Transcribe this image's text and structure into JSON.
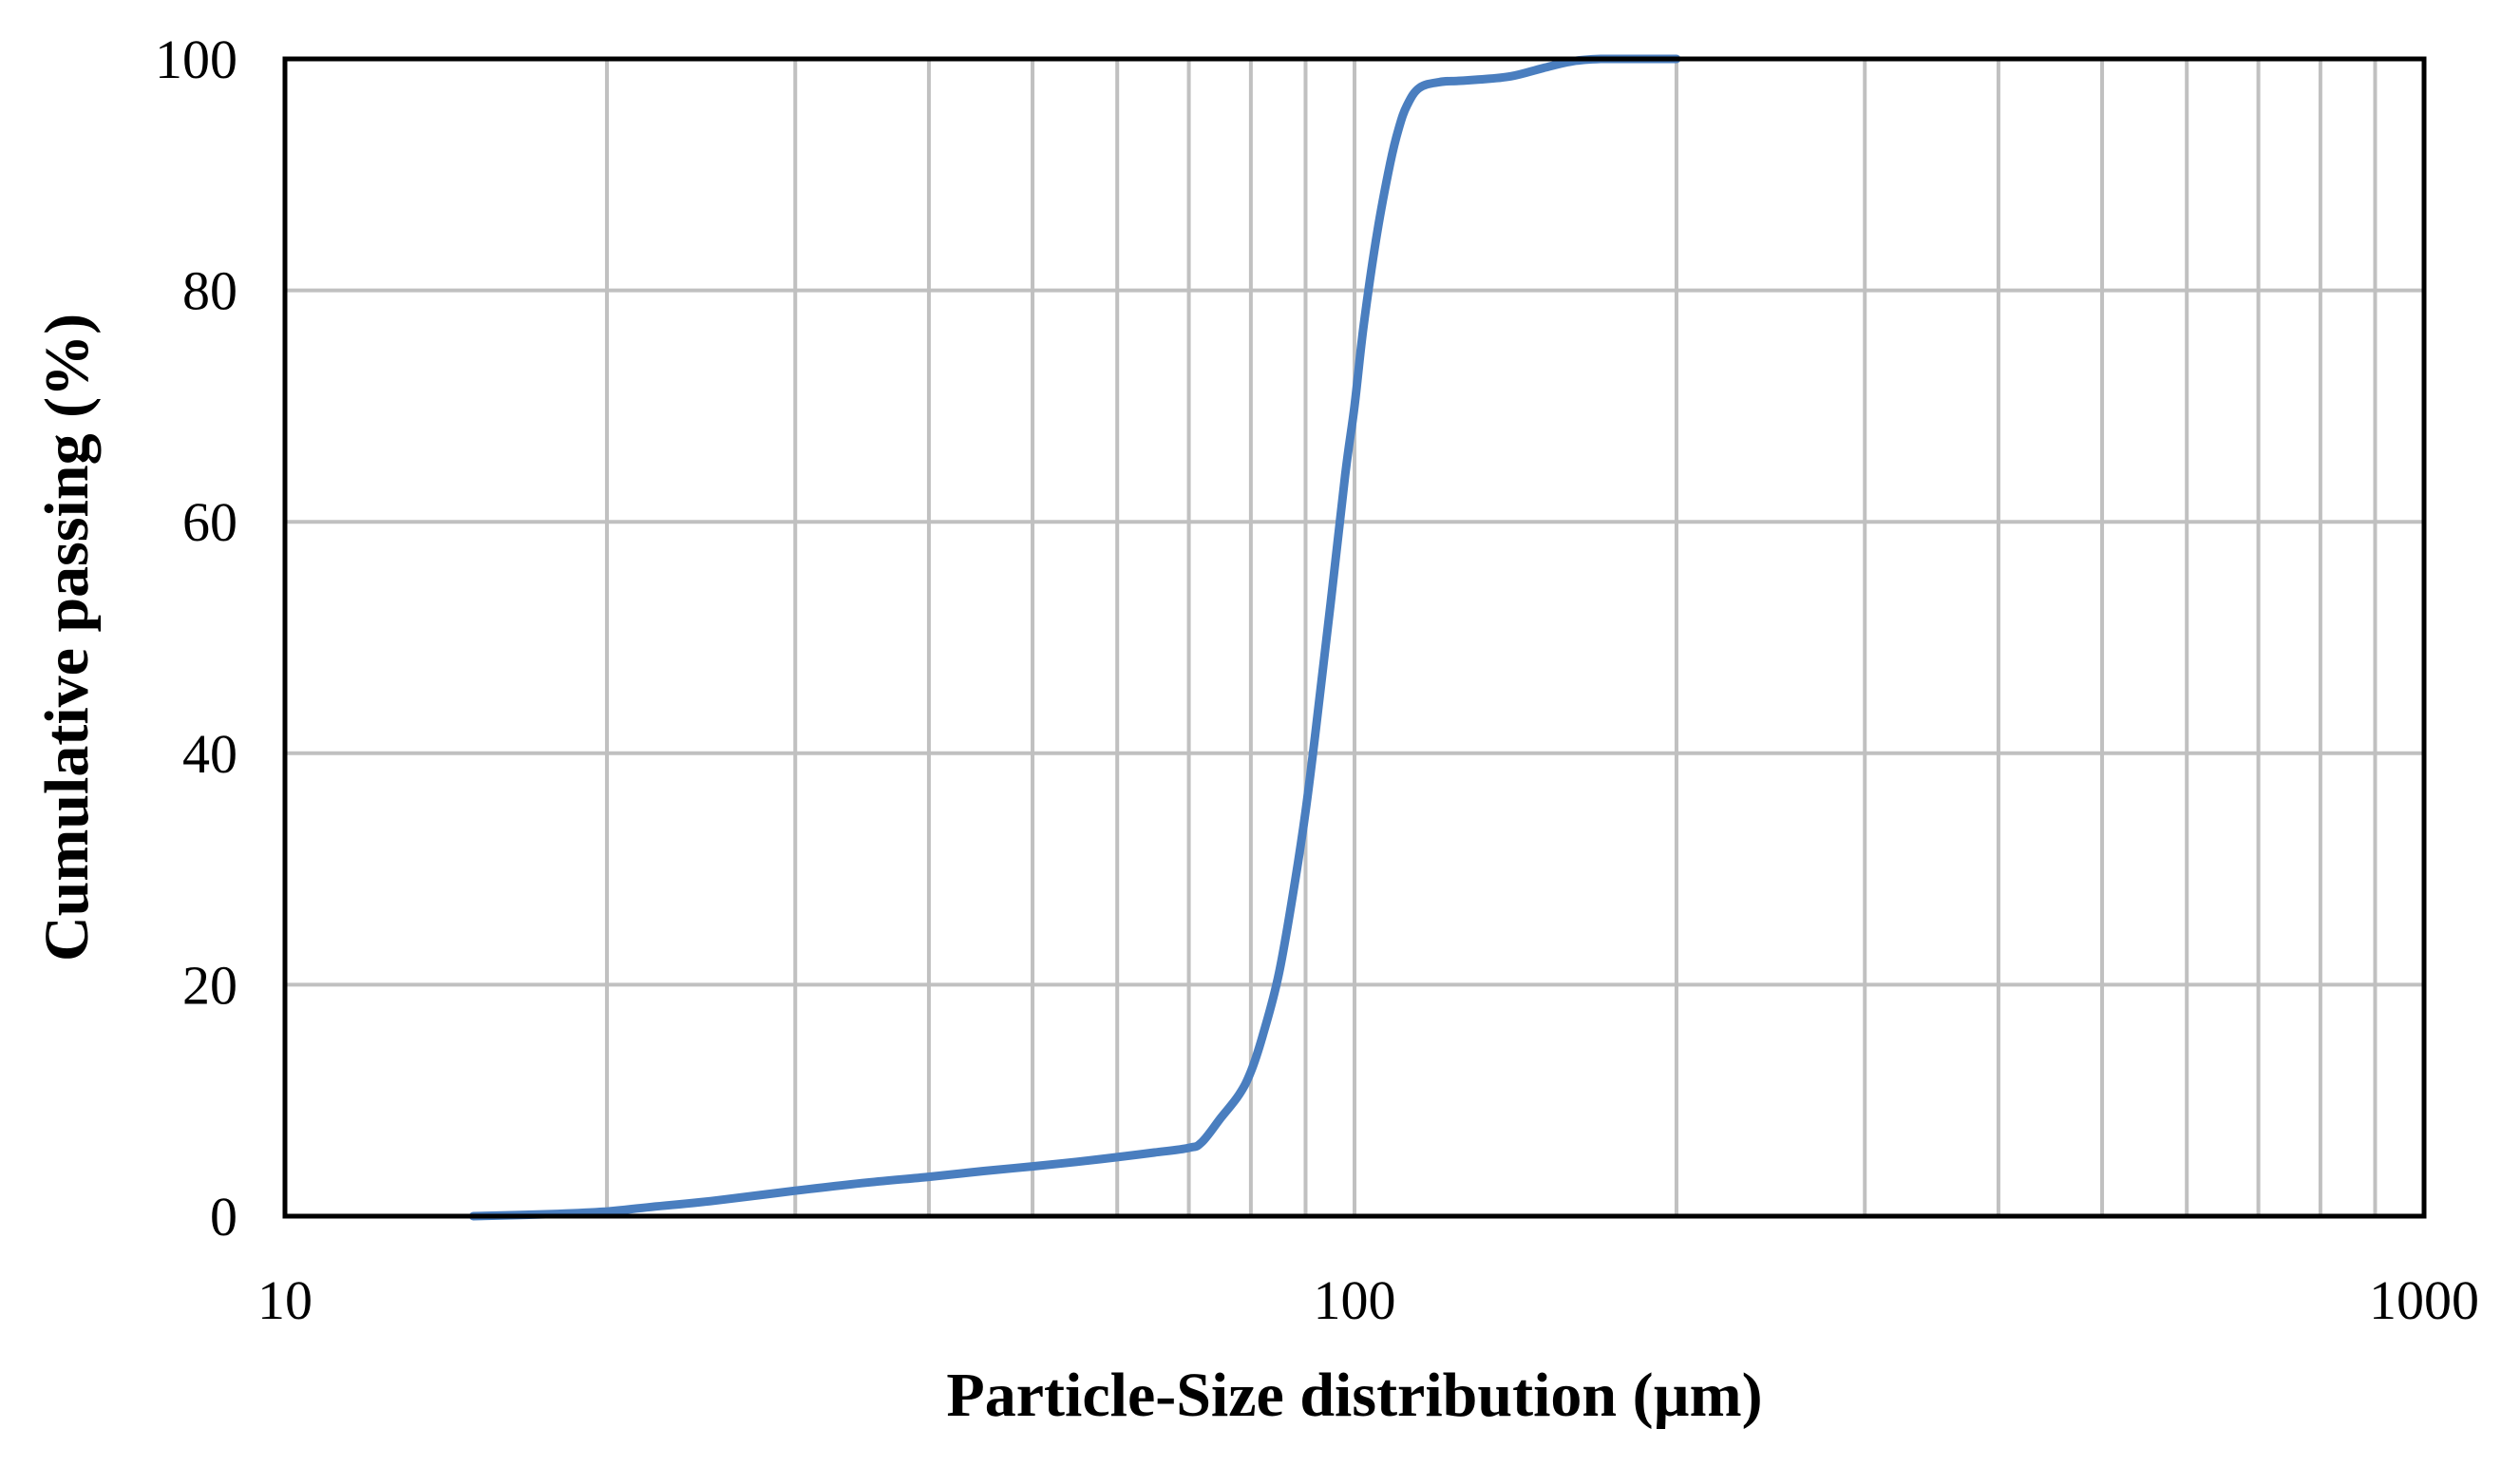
{
  "chart_data": {
    "type": "line",
    "title": "",
    "xlabel": "Particle-Size distribution (µm)",
    "ylabel": "Cumulative passing (%)",
    "x_scale": "log",
    "xlim": [
      10,
      1000
    ],
    "ylim": [
      0,
      100
    ],
    "x_ticks": [
      10,
      100,
      1000
    ],
    "x_tick_labels": [
      "10",
      "100",
      "1000"
    ],
    "y_ticks": [
      0,
      20,
      40,
      60,
      80,
      100
    ],
    "y_tick_labels": [
      "0",
      "20",
      "40",
      "60",
      "80",
      "100"
    ],
    "grid": true,
    "legend": "none",
    "colors": {
      "line": "#4a7ebf",
      "grid": "#c0c0c0",
      "frame": "#000000"
    },
    "series": [
      {
        "x": [
          15,
          18,
          20,
          22,
          25,
          30,
          35,
          40,
          45,
          50,
          55,
          60,
          65,
          70,
          72,
          75,
          78,
          80,
          82,
          85,
          88,
          90,
          92,
          95,
          98,
          100,
          102,
          105,
          108,
          110,
          112,
          115,
          120,
          125,
          130,
          140,
          150,
          160,
          170,
          180,
          190,
          200
        ],
        "y": [
          0.0,
          0.2,
          0.4,
          0.8,
          1.3,
          2.2,
          2.9,
          3.4,
          3.9,
          4.3,
          4.7,
          5.1,
          5.5,
          5.9,
          6.4,
          8.5,
          10.5,
          12.5,
          15.5,
          21,
          29,
          35,
          42,
          53,
          64,
          70,
          77,
          85,
          91,
          94,
          96,
          97.5,
          98.0,
          98.1,
          98.2,
          98.5,
          99.2,
          99.8,
          100,
          100,
          100,
          100
        ]
      }
    ]
  }
}
